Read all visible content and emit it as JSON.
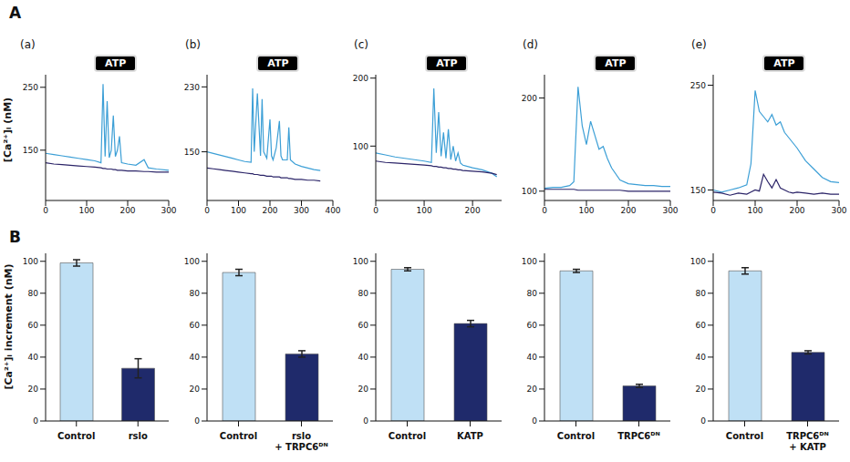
{
  "row_labels": [
    "A",
    "B"
  ],
  "chart_data": [
    {
      "type": "line",
      "title": "(a)",
      "annotation": "ATP",
      "y_label": "[Ca²⁺]ᵢ (nM)",
      "x": [
        0,
        20,
        40,
        60,
        80,
        100,
        120,
        135,
        140,
        145,
        150,
        155,
        160,
        165,
        170,
        175,
        180,
        185,
        200,
        220,
        240,
        250,
        270,
        300
      ],
      "xlim": [
        0,
        300
      ],
      "xticks": [
        0,
        100,
        200,
        300
      ],
      "ylim": [
        70,
        270
      ],
      "yticks": [
        150,
        250
      ],
      "series": [
        {
          "color": "#3c9fd6",
          "values": [
            145,
            143,
            141,
            139,
            137,
            135,
            133,
            130,
            255,
            140,
            228,
            138,
            150,
            205,
            140,
            150,
            172,
            130,
            128,
            126,
            135,
            122,
            120,
            118
          ]
        },
        {
          "color": "#2b2468",
          "values": [
            130,
            128,
            127,
            126,
            125,
            124,
            123,
            122,
            121,
            121,
            120,
            120,
            120,
            119,
            119,
            118,
            118,
            118,
            117,
            117,
            116,
            116,
            115,
            115
          ]
        }
      ]
    },
    {
      "type": "line",
      "title": "(b)",
      "annotation": "ATP",
      "x": [
        0,
        20,
        40,
        60,
        80,
        100,
        120,
        140,
        145,
        150,
        160,
        170,
        175,
        180,
        190,
        200,
        205,
        210,
        220,
        230,
        235,
        240,
        255,
        260,
        265,
        280,
        300,
        320,
        340,
        360
      ],
      "xlim": [
        0,
        400
      ],
      "xticks": [
        0,
        100,
        200,
        300,
        400
      ],
      "ylim": [
        90,
        245
      ],
      "yticks": [
        150,
        230
      ],
      "series": [
        {
          "color": "#3c9fd6",
          "values": [
            150,
            148,
            146,
            144,
            142,
            140,
            138,
            137,
            228,
            150,
            222,
            145,
            215,
            150,
            142,
            190,
            145,
            140,
            155,
            188,
            145,
            140,
            140,
            180,
            140,
            135,
            132,
            130,
            128,
            127
          ]
        },
        {
          "color": "#2b2468",
          "values": [
            130,
            129,
            128,
            127,
            126,
            125,
            124,
            123,
            123,
            122,
            122,
            121,
            121,
            121,
            120,
            120,
            120,
            119,
            119,
            119,
            118,
            118,
            118,
            117,
            117,
            116,
            116,
            115,
            115,
            114
          ]
        }
      ]
    },
    {
      "type": "line",
      "title": "(c)",
      "annotation": "ATP",
      "x": [
        0,
        20,
        40,
        60,
        80,
        100,
        115,
        120,
        125,
        130,
        135,
        140,
        145,
        150,
        155,
        160,
        165,
        170,
        175,
        180,
        200,
        220,
        240,
        250
      ],
      "xlim": [
        0,
        260
      ],
      "xticks": [
        0,
        100,
        200
      ],
      "ylim": [
        20,
        205
      ],
      "yticks": [
        100,
        200
      ],
      "series": [
        {
          "color": "#3c9fd6",
          "values": [
            90,
            87,
            84,
            82,
            80,
            78,
            76,
            185,
            90,
            150,
            85,
            120,
            82,
            125,
            80,
            100,
            78,
            90,
            75,
            72,
            68,
            65,
            60,
            55
          ]
        },
        {
          "color": "#2b2468",
          "values": [
            78,
            76,
            75,
            74,
            73,
            72,
            71,
            70,
            70,
            69,
            69,
            68,
            68,
            67,
            67,
            66,
            66,
            65,
            65,
            64,
            63,
            62,
            60,
            58
          ]
        }
      ]
    },
    {
      "type": "line",
      "title": "(d)",
      "annotation": "ATP",
      "x": [
        0,
        20,
        40,
        60,
        70,
        80,
        90,
        100,
        110,
        120,
        130,
        140,
        150,
        160,
        180,
        200,
        220,
        240,
        260,
        280,
        300
      ],
      "xlim": [
        0,
        300
      ],
      "xticks": [
        0,
        100,
        200,
        300
      ],
      "ylim": [
        90,
        225
      ],
      "yticks": [
        100,
        200
      ],
      "series": [
        {
          "color": "#3c9fd6",
          "values": [
            103,
            104,
            104,
            106,
            110,
            212,
            170,
            150,
            175,
            160,
            145,
            148,
            135,
            125,
            112,
            108,
            107,
            106,
            106,
            105,
            105
          ]
        },
        {
          "color": "#2b2468",
          "values": [
            102,
            102,
            102,
            102,
            102,
            101,
            101,
            101,
            101,
            101,
            101,
            101,
            101,
            101,
            101,
            100,
            100,
            100,
            100,
            100,
            100
          ]
        }
      ]
    },
    {
      "type": "line",
      "title": "(e)",
      "annotation": "ATP",
      "x": [
        0,
        20,
        40,
        60,
        80,
        90,
        100,
        110,
        120,
        130,
        140,
        150,
        160,
        170,
        180,
        190,
        200,
        220,
        240,
        260,
        280,
        300
      ],
      "xlim": [
        0,
        300
      ],
      "xticks": [
        0,
        100,
        200,
        300
      ],
      "ylim": [
        140,
        260
      ],
      "yticks": [
        150,
        250
      ],
      "series": [
        {
          "color": "#3c9fd6",
          "values": [
            150,
            148,
            150,
            152,
            155,
            175,
            245,
            225,
            220,
            215,
            222,
            212,
            215,
            205,
            200,
            195,
            190,
            178,
            170,
            162,
            158,
            157
          ]
        },
        {
          "color": "#2b2468",
          "values": [
            148,
            147,
            145,
            147,
            146,
            148,
            150,
            149,
            165,
            158,
            152,
            160,
            152,
            150,
            148,
            147,
            148,
            147,
            146,
            147,
            146,
            146
          ]
        }
      ]
    },
    {
      "type": "bar",
      "y_label": "[Ca²⁺]ᵢ increment (nM)",
      "categories": [
        "Control",
        "rslo"
      ],
      "values": [
        99,
        33
      ],
      "errors": [
        2,
        6
      ],
      "colors": [
        "#bfe0f5",
        "#1f2a6b"
      ],
      "ylim": [
        0,
        105
      ],
      "yticks": [
        0,
        20,
        40,
        60,
        80,
        100
      ]
    },
    {
      "type": "bar",
      "categories": [
        "Control",
        "rslo + TRPC6ᴰᴺ"
      ],
      "values": [
        93,
        42
      ],
      "errors": [
        2,
        2
      ],
      "colors": [
        "#bfe0f5",
        "#1f2a6b"
      ],
      "ylim": [
        0,
        105
      ],
      "yticks": [
        0,
        20,
        40,
        60,
        80,
        100
      ]
    },
    {
      "type": "bar",
      "categories": [
        "Control",
        "KATP"
      ],
      "values": [
        95,
        61
      ],
      "errors": [
        1,
        2
      ],
      "colors": [
        "#bfe0f5",
        "#1f2a6b"
      ],
      "ylim": [
        0,
        105
      ],
      "yticks": [
        0,
        20,
        40,
        60,
        80,
        100
      ]
    },
    {
      "type": "bar",
      "categories": [
        "Control",
        "TRPC6ᴰᴺ"
      ],
      "values": [
        94,
        22
      ],
      "errors": [
        1,
        1
      ],
      "colors": [
        "#bfe0f5",
        "#1f2a6b"
      ],
      "ylim": [
        0,
        105
      ],
      "yticks": [
        0,
        20,
        40,
        60,
        80,
        100
      ]
    },
    {
      "type": "bar",
      "categories": [
        "Control",
        "TRPC6ᴰᴺ + KATP"
      ],
      "values": [
        94,
        43
      ],
      "errors": [
        2,
        1
      ],
      "colors": [
        "#bfe0f5",
        "#1f2a6b"
      ],
      "ylim": [
        0,
        105
      ],
      "yticks": [
        0,
        20,
        40,
        60,
        80,
        100
      ]
    }
  ]
}
